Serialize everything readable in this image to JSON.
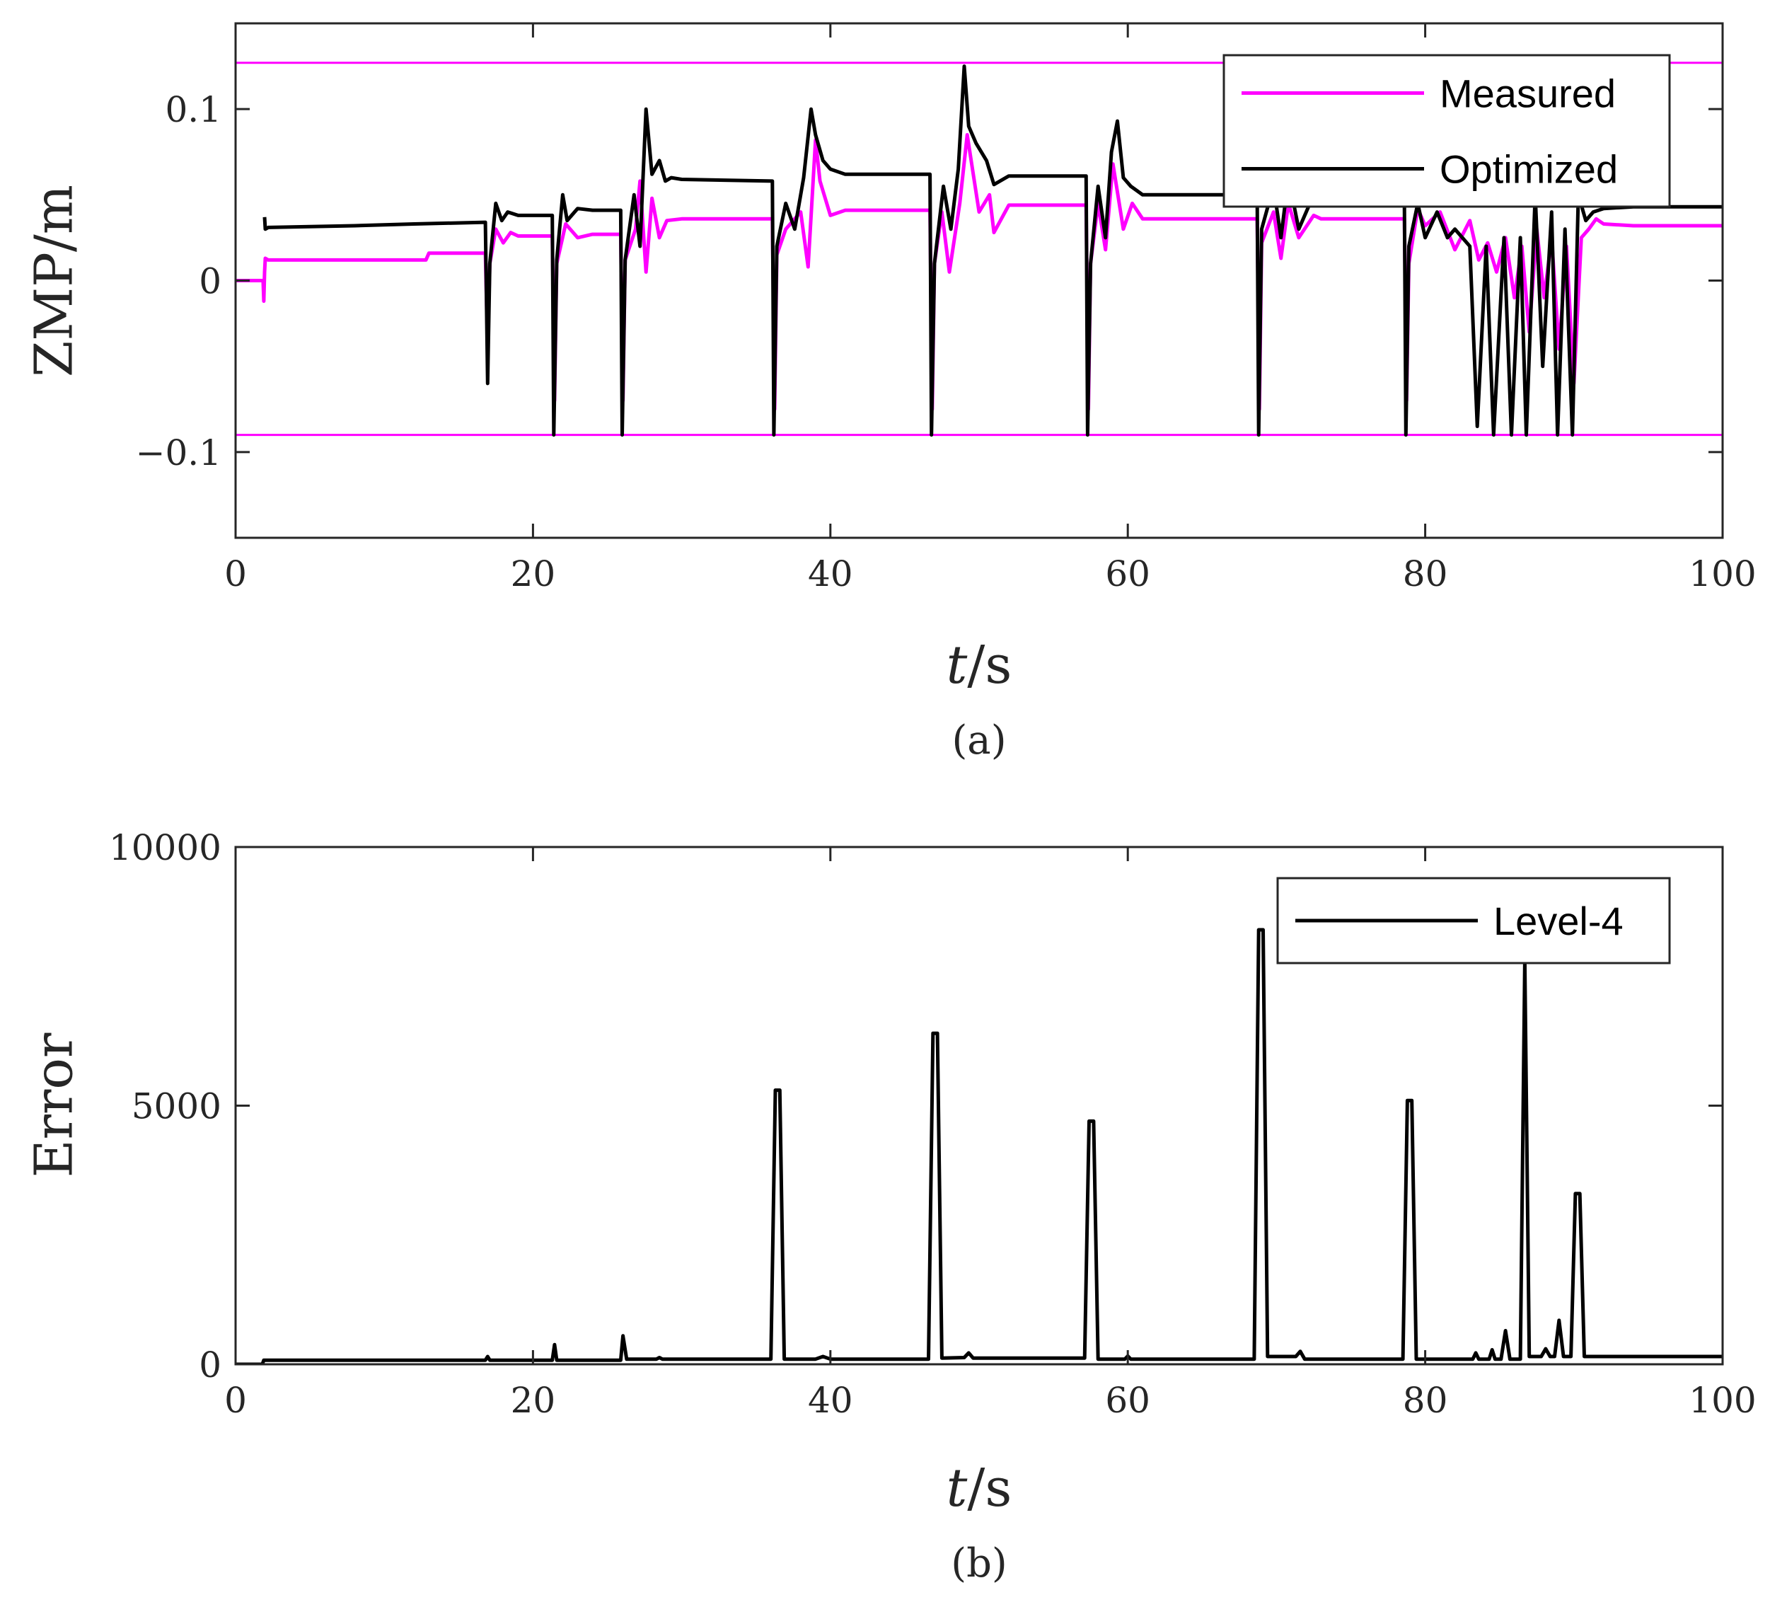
{
  "colors": {
    "measured": "#ff00ff",
    "optimized": "#000000",
    "level4": "#000000",
    "limits": "#ff00ff"
  },
  "chart_data": [
    {
      "id": "a",
      "type": "line",
      "caption": "(a)",
      "ylabel": "ZMP/m",
      "xlabel_italic": "t",
      "xlabel_rest": "/s",
      "xlim": [
        0,
        100
      ],
      "ylim": [
        -0.15,
        0.15
      ],
      "xticks": [
        0,
        20,
        40,
        60,
        80,
        100
      ],
      "xtick_labels": [
        "0",
        "20",
        "40",
        "60",
        "80",
        "100"
      ],
      "yticks": [
        -0.1,
        0,
        0.1
      ],
      "ytick_labels": [
        "−0.1",
        "0",
        "0.1"
      ],
      "legend": [
        "Measured",
        "Optimized"
      ],
      "legend_location": "top-right",
      "limit_lines": [
        0.127,
        -0.09
      ],
      "series": [
        {
          "name": "Measured",
          "x": [
            0,
            1.85,
            1.9,
            1.95,
            2.0,
            2.2,
            12.8,
            13.0,
            16.8,
            16.95,
            17.1,
            17.5,
            18.0,
            18.5,
            19.0,
            21.3,
            21.45,
            21.6,
            22.2,
            23.0,
            24.0,
            25.9,
            26.05,
            26.2,
            26.9,
            27.2,
            27.6,
            28.0,
            28.5,
            29.0,
            30.0,
            36.1,
            36.25,
            36.4,
            37.0,
            38.0,
            38.5,
            39.0,
            39.3,
            40.0,
            41.0,
            46.7,
            46.85,
            47.0,
            47.5,
            48.0,
            48.7,
            49.2,
            50.0,
            50.7,
            51.0,
            52.0,
            57.2,
            57.35,
            57.5,
            58.0,
            58.5,
            59.0,
            59.7,
            60.3,
            61.0,
            62.0,
            68.7,
            68.85,
            69.0,
            69.8,
            70.3,
            70.8,
            71.5,
            72.5,
            73.0,
            78.6,
            78.75,
            78.9,
            79.5,
            80.0,
            81.0,
            82.0,
            83.0,
            83.6,
            84.2,
            84.8,
            85.4,
            86.0,
            86.5,
            87.0,
            87.5,
            88.0,
            88.5,
            89.0,
            89.5,
            90.0,
            90.5,
            91.0,
            91.5,
            92.0,
            94.0,
            100.0
          ],
          "y": [
            0,
            0,
            -0.012,
            0.005,
            0.013,
            0.012,
            0.012,
            0.016,
            0.016,
            -0.04,
            0.01,
            0.03,
            0.022,
            0.028,
            0.026,
            0.026,
            -0.07,
            0.01,
            0.033,
            0.025,
            0.027,
            0.027,
            -0.07,
            0.012,
            0.03,
            0.058,
            0.005,
            0.048,
            0.025,
            0.035,
            0.036,
            0.036,
            -0.075,
            0.015,
            0.03,
            0.04,
            0.008,
            0.082,
            0.058,
            0.038,
            0.041,
            0.041,
            -0.075,
            0.01,
            0.04,
            0.005,
            0.045,
            0.085,
            0.04,
            0.05,
            0.028,
            0.044,
            0.044,
            -0.075,
            0.01,
            0.045,
            0.018,
            0.068,
            0.03,
            0.045,
            0.036,
            0.036,
            0.036,
            -0.075,
            0.022,
            0.04,
            0.013,
            0.045,
            0.025,
            0.038,
            0.036,
            0.036,
            -0.07,
            0.01,
            0.042,
            0.032,
            0.04,
            0.018,
            0.035,
            0.012,
            0.022,
            0.005,
            0.025,
            -0.01,
            0.02,
            -0.03,
            0.03,
            -0.01,
            0.025,
            -0.04,
            0.02,
            -0.06,
            0.025,
            0.03,
            0.036,
            0.033,
            0.032,
            0.032
          ]
        },
        {
          "name": "Optimized",
          "x": [
            0,
            1.85,
            1.9,
            1.95,
            2.0,
            2.2,
            8.0,
            12.0,
            16.8,
            16.95,
            17.1,
            17.5,
            17.9,
            18.3,
            19.0,
            21.3,
            21.4,
            21.6,
            22.0,
            22.3,
            23.0,
            24.0,
            25.9,
            26.0,
            26.2,
            26.8,
            27.2,
            27.6,
            28.0,
            28.5,
            28.9,
            29.3,
            30.0,
            36.1,
            36.2,
            36.4,
            37.0,
            37.6,
            38.2,
            38.7,
            39.0,
            39.5,
            40.0,
            41.0,
            46.7,
            46.8,
            47.0,
            47.6,
            48.1,
            48.6,
            49.0,
            49.3,
            49.8,
            50.5,
            51.0,
            52.0,
            57.2,
            57.3,
            57.5,
            58.0,
            58.5,
            58.9,
            59.3,
            59.7,
            60.2,
            61.0,
            62.0,
            68.7,
            68.8,
            69.0,
            69.8,
            70.3,
            70.8,
            71.5,
            72.5,
            73.0,
            78.6,
            78.7,
            78.9,
            79.5,
            80.0,
            80.8,
            81.5,
            82.0,
            83.0,
            83.5,
            84.1,
            84.6,
            85.3,
            85.8,
            86.4,
            86.8,
            87.4,
            87.9,
            88.5,
            88.9,
            89.4,
            89.9,
            90.3,
            90.8,
            91.3,
            92.0,
            94.0,
            100.0
          ],
          "y": [
            null,
            null,
            null,
            0.037,
            0.03,
            0.031,
            0.032,
            0.033,
            0.034,
            -0.06,
            0.01,
            0.045,
            0.035,
            0.04,
            0.038,
            0.038,
            -0.09,
            0.012,
            0.05,
            0.035,
            0.042,
            0.041,
            0.041,
            -0.09,
            0.012,
            0.05,
            0.02,
            0.1,
            0.062,
            0.07,
            0.058,
            0.06,
            0.059,
            0.058,
            -0.09,
            0.02,
            0.045,
            0.03,
            0.06,
            0.1,
            0.085,
            0.07,
            0.065,
            0.062,
            0.062,
            -0.09,
            0.01,
            0.055,
            0.03,
            0.065,
            0.125,
            0.09,
            0.08,
            0.07,
            0.056,
            0.061,
            0.061,
            -0.09,
            0.01,
            0.055,
            0.025,
            0.075,
            0.093,
            0.06,
            0.055,
            0.05,
            0.05,
            0.05,
            -0.09,
            0.03,
            0.055,
            0.025,
            0.06,
            0.03,
            0.05,
            0.045,
            0.045,
            -0.09,
            0.02,
            0.045,
            0.025,
            0.04,
            0.025,
            0.03,
            0.02,
            -0.085,
            0.02,
            -0.09,
            0.025,
            -0.09,
            0.025,
            -0.09,
            0.05,
            -0.05,
            0.04,
            -0.09,
            0.03,
            -0.09,
            0.05,
            0.035,
            0.04,
            0.042,
            0.043,
            0.043
          ]
        }
      ]
    },
    {
      "id": "b",
      "type": "line",
      "caption": "(b)",
      "ylabel": "Error",
      "xlabel_italic": "t",
      "xlabel_rest": "/s",
      "xlim": [
        0,
        100
      ],
      "ylim": [
        0,
        10000
      ],
      "xticks": [
        0,
        20,
        40,
        60,
        80,
        100
      ],
      "xtick_labels": [
        "0",
        "20",
        "40",
        "60",
        "80",
        "100"
      ],
      "yticks": [
        0,
        5000,
        10000
      ],
      "ytick_labels": [
        "0",
        "5000",
        "10000"
      ],
      "legend": [
        "Level-4"
      ],
      "legend_location": "top-right",
      "series": [
        {
          "name": "Level-4",
          "x": [
            0,
            1.8,
            1.9,
            16.8,
            16.95,
            17.1,
            21.3,
            21.45,
            21.6,
            25.9,
            26.05,
            26.3,
            28.3,
            28.5,
            28.7,
            36.0,
            36.3,
            36.6,
            36.9,
            39.0,
            39.5,
            40.0,
            46.6,
            46.9,
            47.2,
            47.5,
            49.0,
            49.3,
            49.6,
            57.1,
            57.4,
            57.7,
            58.0,
            59.8,
            60.0,
            60.2,
            68.5,
            68.8,
            69.1,
            69.4,
            71.3,
            71.6,
            71.9,
            78.5,
            78.8,
            79.1,
            79.4,
            83.2,
            83.4,
            83.6,
            84.3,
            84.5,
            84.7,
            85.1,
            85.4,
            85.7,
            86.4,
            86.7,
            87.0,
            87.8,
            88.1,
            88.4,
            88.7,
            89.0,
            89.3,
            89.8,
            90.1,
            90.4,
            90.7,
            100.0
          ],
          "y": [
            0,
            0,
            80,
            80,
            150,
            80,
            80,
            380,
            80,
            80,
            550,
            100,
            100,
            130,
            100,
            100,
            5300,
            5300,
            100,
            100,
            150,
            100,
            100,
            6400,
            6400,
            120,
            130,
            220,
            120,
            120,
            4700,
            4700,
            100,
            100,
            160,
            100,
            100,
            8400,
            8400,
            150,
            150,
            250,
            100,
            100,
            5100,
            5100,
            100,
            100,
            220,
            100,
            100,
            280,
            100,
            100,
            650,
            100,
            100,
            7800,
            150,
            150,
            300,
            150,
            150,
            850,
            150,
            150,
            3300,
            3300,
            150,
            150
          ]
        }
      ]
    }
  ]
}
